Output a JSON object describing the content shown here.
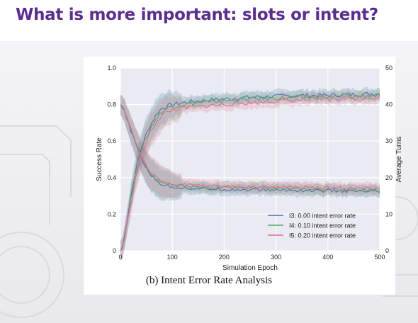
{
  "slide": {
    "title": "What is more important: slots or intent?",
    "caption": "(b) Intent Error Rate Analysis",
    "title_color": "#5b2d8e"
  },
  "chart_data": {
    "type": "line",
    "xlabel": "Simulation Epoch",
    "ylabel_left": "Success Rate",
    "ylabel_right": "Average Turns",
    "xlim": [
      0,
      500
    ],
    "ylim_left": [
      0,
      1.0
    ],
    "ylim_right": [
      0,
      50
    ],
    "xticks": [
      "0",
      "100",
      "200",
      "300",
      "400",
      "500"
    ],
    "yticks_left": [
      "0",
      "0.2",
      "0.4",
      "0.6",
      "0.8",
      "1.0"
    ],
    "yticks_right": [
      "0",
      "10",
      "20",
      "30",
      "40",
      "50"
    ],
    "grid": true,
    "background": "#eaeaf2",
    "legend_position": "lower-right",
    "series": [
      {
        "name": "I3: 0.00 intent error rate",
        "color": "#4c72b0",
        "success_rate": {
          "x": [
            0,
            5,
            10,
            20,
            30,
            40,
            50,
            60,
            70,
            80,
            90,
            100,
            120,
            150,
            200,
            250,
            300,
            350,
            400,
            450,
            500
          ],
          "y": [
            0.0,
            0.03,
            0.12,
            0.3,
            0.45,
            0.56,
            0.64,
            0.7,
            0.75,
            0.78,
            0.79,
            0.8,
            0.81,
            0.82,
            0.83,
            0.84,
            0.845,
            0.85,
            0.85,
            0.855,
            0.86
          ]
        },
        "average_turns": {
          "x": [
            0,
            5,
            10,
            20,
            30,
            40,
            50,
            60,
            70,
            80,
            90,
            100,
            120,
            150,
            200,
            250,
            300,
            350,
            400,
            450,
            500
          ],
          "y": [
            40.0,
            39.0,
            37.0,
            33.0,
            29.0,
            25.5,
            22.5,
            20.5,
            19.0,
            18.2,
            17.8,
            17.5,
            17.2,
            17.0,
            16.8,
            16.7,
            16.6,
            16.5,
            16.4,
            16.3,
            16.0
          ]
        }
      },
      {
        "name": "I4: 0.10 intent error rate",
        "color": "#55a868",
        "success_rate": {
          "x": [
            0,
            5,
            10,
            20,
            30,
            40,
            50,
            60,
            70,
            80,
            90,
            100,
            120,
            150,
            200,
            250,
            300,
            350,
            400,
            450,
            500
          ],
          "y": [
            0.0,
            0.03,
            0.11,
            0.28,
            0.43,
            0.54,
            0.62,
            0.68,
            0.73,
            0.76,
            0.78,
            0.79,
            0.8,
            0.81,
            0.82,
            0.83,
            0.835,
            0.84,
            0.84,
            0.845,
            0.85
          ]
        },
        "average_turns": {
          "x": [
            0,
            5,
            10,
            20,
            30,
            40,
            50,
            60,
            70,
            80,
            90,
            100,
            120,
            150,
            200,
            250,
            300,
            350,
            400,
            450,
            500
          ],
          "y": [
            40.0,
            39.2,
            37.2,
            33.3,
            29.3,
            25.8,
            22.8,
            20.8,
            19.4,
            18.6,
            18.2,
            17.9,
            17.6,
            17.4,
            17.2,
            17.1,
            17.0,
            16.9,
            16.8,
            16.7,
            16.5
          ]
        }
      },
      {
        "name": "I5: 0.20 intent error rate",
        "color": "#e56b8c",
        "success_rate": {
          "x": [
            0,
            5,
            10,
            20,
            30,
            40,
            50,
            60,
            70,
            80,
            90,
            100,
            120,
            150,
            200,
            250,
            300,
            350,
            400,
            450,
            500
          ],
          "y": [
            0.0,
            0.02,
            0.1,
            0.26,
            0.41,
            0.52,
            0.6,
            0.66,
            0.71,
            0.74,
            0.76,
            0.77,
            0.78,
            0.79,
            0.8,
            0.81,
            0.82,
            0.825,
            0.83,
            0.835,
            0.84
          ]
        },
        "average_turns": {
          "x": [
            0,
            5,
            10,
            20,
            30,
            40,
            50,
            60,
            70,
            80,
            90,
            100,
            120,
            150,
            200,
            250,
            300,
            350,
            400,
            450,
            500
          ],
          "y": [
            40.0,
            39.4,
            37.5,
            33.6,
            29.7,
            26.2,
            23.2,
            21.2,
            19.8,
            19.0,
            18.6,
            18.3,
            18.0,
            17.8,
            17.6,
            17.5,
            17.4,
            17.3,
            17.2,
            17.1,
            17.0
          ]
        }
      }
    ]
  }
}
